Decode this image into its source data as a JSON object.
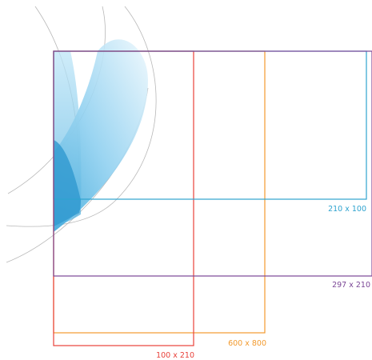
{
  "formats": [
    {
      "id": "red",
      "label": "100 x 210",
      "color": "#e8413a"
    },
    {
      "id": "orange",
      "label": "600 x 800",
      "color": "#f29a2e"
    },
    {
      "id": "purple",
      "label": "297 x 210",
      "color": "#7b4796"
    },
    {
      "id": "blue",
      "label": "210 x 100",
      "color": "#2ea3cf"
    }
  ],
  "colors": {
    "swoosh_light": "#9fd6f2",
    "swoosh_mid": "#56b4e2",
    "swoosh_dark": "#2f98cf",
    "arc_lines": "#b8b8b8"
  }
}
